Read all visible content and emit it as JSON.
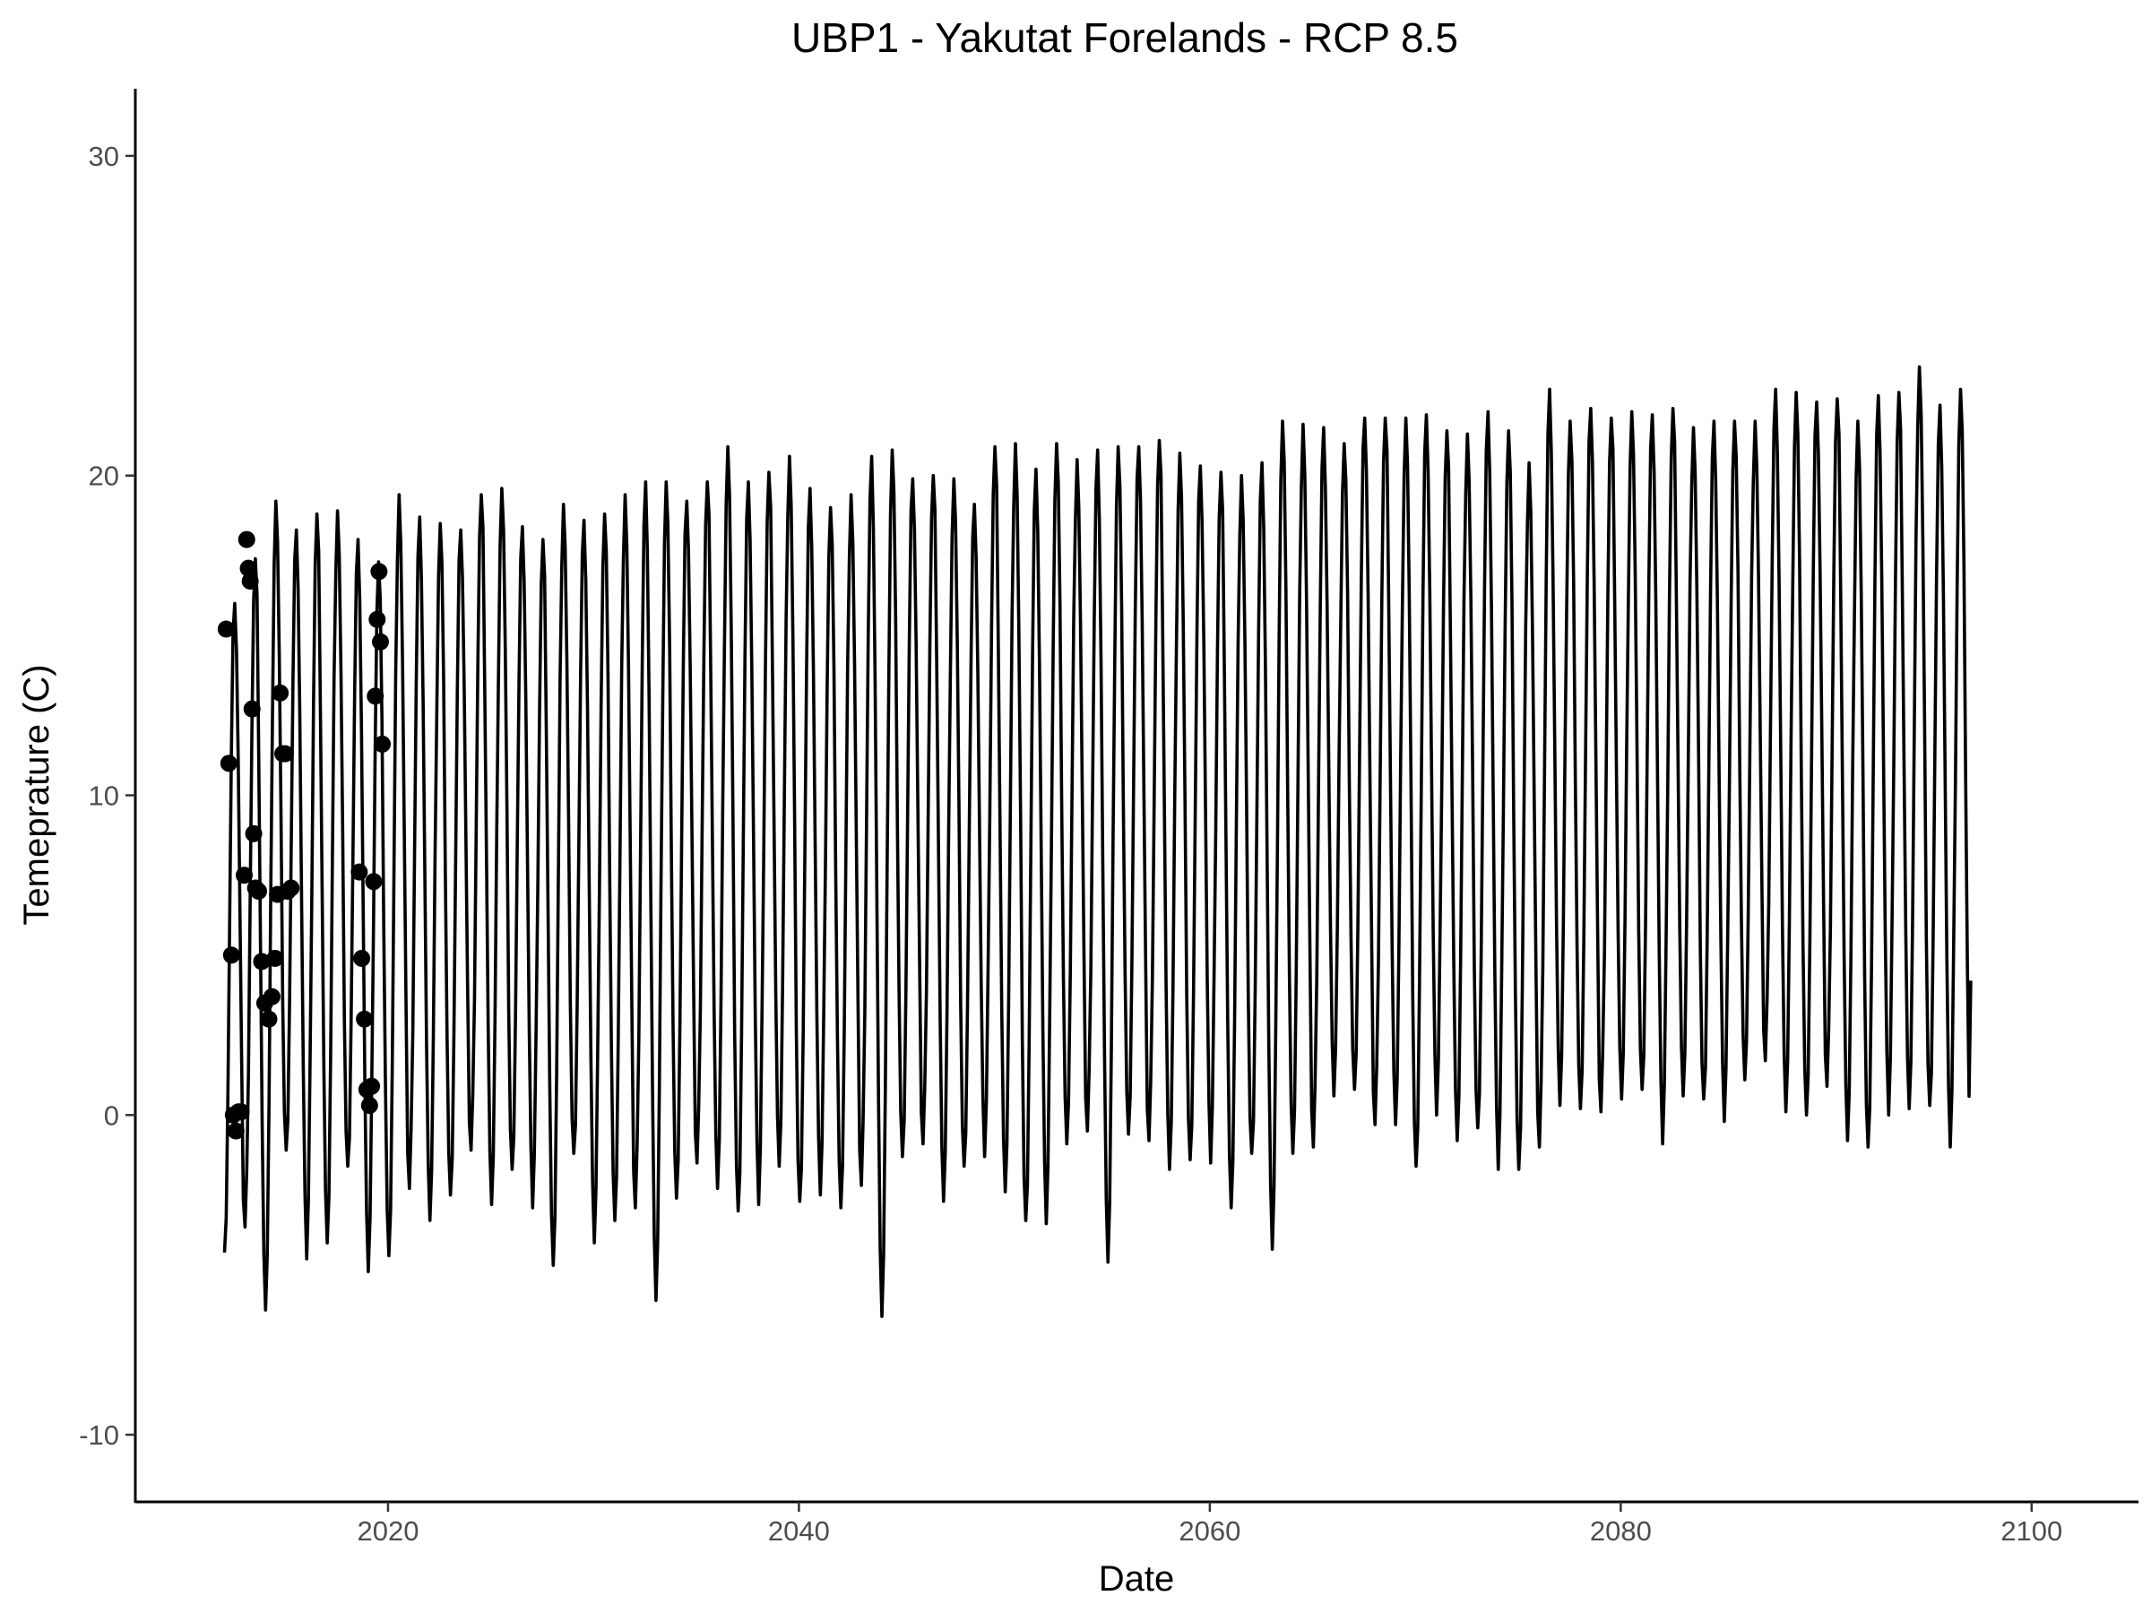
{
  "chart_data": {
    "type": "line",
    "title": "UBP1 - Yakutat Forelands - RCP 8.5",
    "xlabel": "Date",
    "ylabel": "Temeprature (C)",
    "xlim": [
      2007.7,
      2105.2
    ],
    "ylim": [
      -12.1,
      32.1
    ],
    "x_ticks": [
      {
        "value": 2020,
        "label": "2020"
      },
      {
        "value": 2040,
        "label": "2040"
      },
      {
        "value": 2060,
        "label": "2060"
      },
      {
        "value": 2080,
        "label": "2080"
      },
      {
        "value": 2100,
        "label": "2100"
      }
    ],
    "y_ticks": [
      {
        "value": -10,
        "label": "-10"
      },
      {
        "value": 0,
        "label": "0"
      },
      {
        "value": 10,
        "label": "10"
      },
      {
        "value": 20,
        "label": "20"
      },
      {
        "value": 30,
        "label": "30"
      }
    ],
    "grid": false,
    "legend": "none",
    "line_color": "#000000",
    "series": [
      {
        "kind": "line",
        "x_start": 2012.04,
        "x_step": 0.0833333,
        "annual_max": [
          16.0,
          17.4,
          19.2,
          18.3,
          18.8,
          18.9,
          18.0,
          17.3,
          19.4,
          18.7,
          18.5,
          18.3,
          19.4,
          19.6,
          18.4,
          18.0,
          19.1,
          18.6,
          18.8,
          19.4,
          19.8,
          19.8,
          19.2,
          19.8,
          20.9,
          19.8,
          20.1,
          20.6,
          19.6,
          19.0,
          19.4,
          20.6,
          20.8,
          19.9,
          20.0,
          19.9,
          19.1,
          20.9,
          21.0,
          20.2,
          21.0,
          20.5,
          20.8,
          20.9,
          20.9,
          21.1,
          20.7,
          20.3,
          20.1,
          20.0,
          20.4,
          21.7,
          21.6,
          21.5,
          21.0,
          21.8,
          21.8,
          21.8,
          21.9,
          21.4,
          21.3,
          22.0,
          21.4,
          20.4,
          22.7,
          21.7,
          22.1,
          21.8,
          22.0,
          21.9,
          22.1,
          21.5,
          21.7,
          21.7,
          21.7,
          22.7,
          22.6,
          22.3,
          22.4,
          21.7,
          22.5,
          22.6,
          23.4,
          22.2,
          22.7
        ],
        "annual_min": [
          -4.3,
          -3.5,
          -6.1,
          -1.1,
          -4.5,
          -4.0,
          -1.6,
          -4.9,
          -4.4,
          -2.3,
          -3.3,
          -2.5,
          -1.1,
          -2.8,
          -1.7,
          -2.9,
          -4.7,
          -1.2,
          -4.0,
          -3.3,
          -2.9,
          -5.8,
          -2.6,
          -1.5,
          -2.3,
          -3.0,
          -2.8,
          -1.6,
          -2.7,
          -2.5,
          -2.9,
          -2.2,
          -6.3,
          -1.3,
          -0.9,
          -2.7,
          -1.6,
          -1.3,
          -2.4,
          -3.3,
          -3.4,
          -0.9,
          -0.5,
          -4.6,
          -0.6,
          -0.8,
          -1.7,
          -1.4,
          -1.5,
          -2.9,
          -1.2,
          -4.2,
          -1.2,
          -1.0,
          0.6,
          0.8,
          -0.3,
          -0.3,
          -1.6,
          0.0,
          -0.8,
          -0.4,
          -1.7,
          -1.7,
          -1.0,
          0.3,
          0.2,
          0.1,
          0.5,
          0.8,
          -0.9,
          0.6,
          0.5,
          -0.2,
          1.1,
          1.7,
          0.1,
          0.0,
          0.9,
          -0.8,
          -1.0,
          0.0,
          0.2,
          0.3,
          -1.0
        ],
        "end_value": 4.2
      },
      {
        "kind": "points",
        "x": [
          2012.12,
          2012.25,
          2012.38,
          2012.47,
          2012.6,
          2012.72,
          2012.85,
          2013.0,
          2013.12,
          2013.2,
          2013.29,
          2013.38,
          2013.46,
          2013.55,
          2013.7,
          2013.85,
          2014.0,
          2014.2,
          2014.35,
          2014.5,
          2014.62,
          2014.75,
          2014.88,
          2015.0,
          2015.12,
          2015.28,
          2018.6,
          2018.72,
          2018.85,
          2018.97,
          2019.1,
          2019.2,
          2019.3,
          2019.38,
          2019.47,
          2019.56,
          2019.63,
          2019.72
        ],
        "y": [
          15.2,
          11.0,
          5.0,
          0.0,
          -0.5,
          0.1,
          0.1,
          7.5,
          18.0,
          17.1,
          16.7,
          12.7,
          8.8,
          7.1,
          7.0,
          4.8,
          3.5,
          3.0,
          3.7,
          4.9,
          6.9,
          13.2,
          11.3,
          11.3,
          7.0,
          7.1,
          7.6,
          4.9,
          3.0,
          0.8,
          0.3,
          0.9,
          7.3,
          13.1,
          15.5,
          17.0,
          14.8,
          11.6
        ]
      }
    ]
  }
}
